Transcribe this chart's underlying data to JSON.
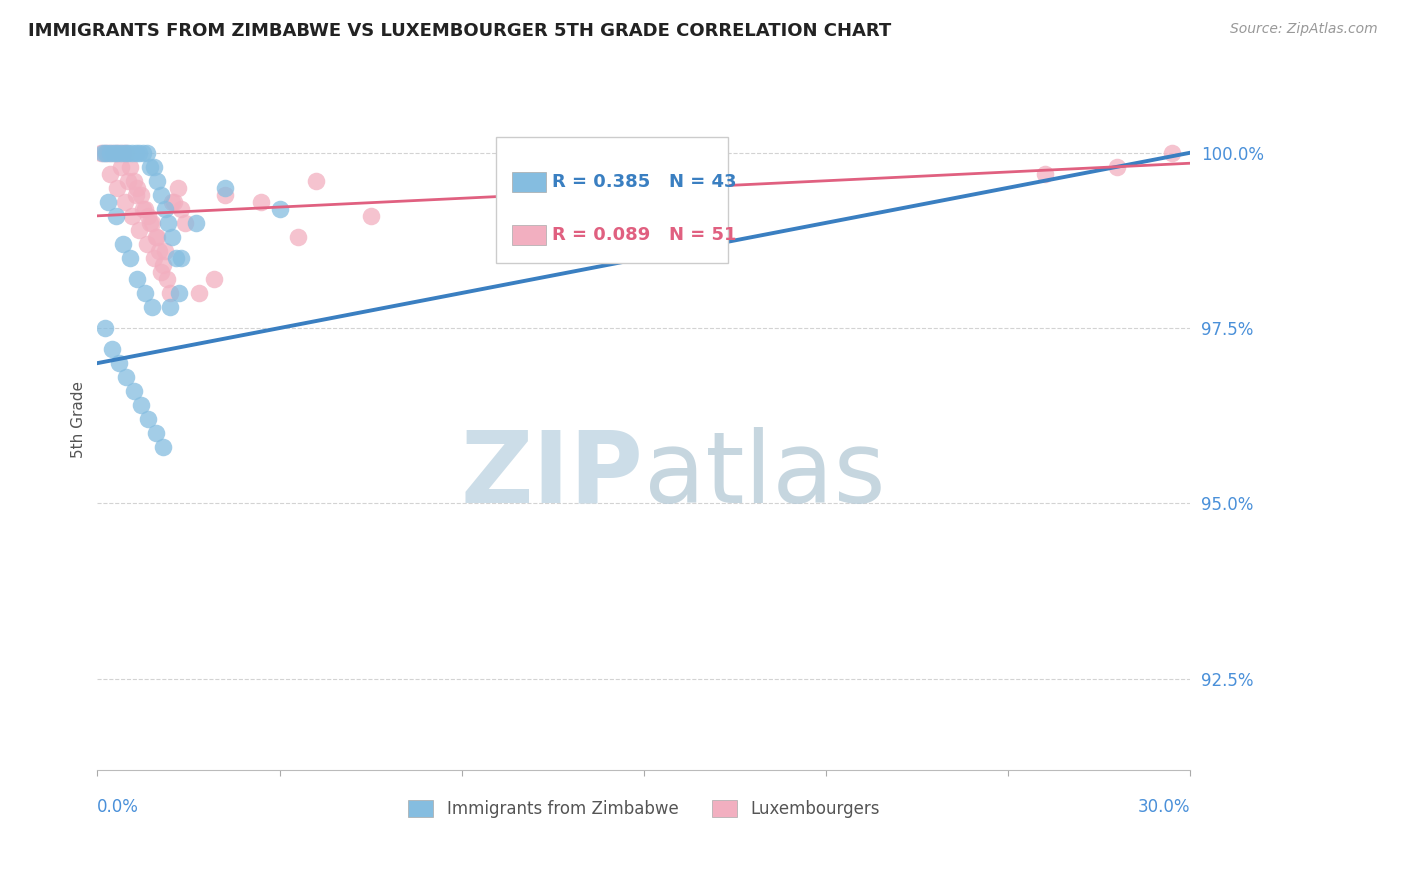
{
  "title": "IMMIGRANTS FROM ZIMBABWE VS LUXEMBOURGER 5TH GRADE CORRELATION CHART",
  "source": "Source: ZipAtlas.com",
  "ylabel": "5th Grade",
  "yticks": [
    92.5,
    95.0,
    97.5,
    100.0
  ],
  "ytick_labels": [
    "92.5%",
    "95.0%",
    "97.5%",
    "100.0%"
  ],
  "xlim": [
    0.0,
    30.0
  ],
  "ylim": [
    91.2,
    101.2
  ],
  "blue_color": "#85bde0",
  "pink_color": "#f2afc0",
  "blue_line_color": "#3a7fc1",
  "pink_line_color": "#e06080",
  "legend_r_blue": "R = 0.385",
  "legend_n_blue": "N = 43",
  "legend_r_pink": "R = 0.089",
  "legend_n_pink": "N = 51",
  "blue_scatter_x": [
    0.15,
    0.25,
    0.35,
    0.45,
    0.55,
    0.65,
    0.75,
    0.85,
    0.95,
    1.05,
    1.15,
    1.25,
    1.35,
    1.45,
    1.55,
    1.65,
    1.75,
    1.85,
    1.95,
    2.05,
    2.15,
    2.25,
    0.3,
    0.5,
    0.7,
    0.9,
    1.1,
    1.3,
    1.5,
    0.2,
    0.4,
    3.5,
    5.0,
    0.6,
    0.8,
    1.0,
    1.2,
    1.4,
    1.6,
    1.8,
    2.0,
    2.3,
    2.7
  ],
  "blue_scatter_y": [
    100.0,
    100.0,
    100.0,
    100.0,
    100.0,
    100.0,
    100.0,
    100.0,
    100.0,
    100.0,
    100.0,
    100.0,
    100.0,
    99.8,
    99.8,
    99.6,
    99.4,
    99.2,
    99.0,
    98.8,
    98.5,
    98.0,
    99.3,
    99.1,
    98.7,
    98.5,
    98.2,
    98.0,
    97.8,
    97.5,
    97.2,
    99.5,
    99.2,
    97.0,
    96.8,
    96.6,
    96.4,
    96.2,
    96.0,
    95.8,
    97.8,
    98.5,
    99.0
  ],
  "pink_scatter_x": [
    0.1,
    0.2,
    0.3,
    0.4,
    0.5,
    0.6,
    0.7,
    0.8,
    0.9,
    1.0,
    1.1,
    1.2,
    1.3,
    1.4,
    1.5,
    1.6,
    1.7,
    1.8,
    1.9,
    2.0,
    2.1,
    2.2,
    2.3,
    2.4,
    0.35,
    0.55,
    0.75,
    0.95,
    1.15,
    1.35,
    1.55,
    1.75,
    3.5,
    4.5,
    5.5,
    6.0,
    2.8,
    3.2,
    7.5,
    0.65,
    0.85,
    1.05,
    1.25,
    1.45,
    1.65,
    1.85,
    2.05,
    12.0,
    26.0,
    28.0,
    29.5
  ],
  "pink_scatter_y": [
    100.0,
    100.0,
    100.0,
    100.0,
    100.0,
    100.0,
    100.0,
    100.0,
    99.8,
    99.6,
    99.5,
    99.4,
    99.2,
    99.1,
    99.0,
    98.8,
    98.6,
    98.4,
    98.2,
    98.0,
    99.3,
    99.5,
    99.2,
    99.0,
    99.7,
    99.5,
    99.3,
    99.1,
    98.9,
    98.7,
    98.5,
    98.3,
    99.4,
    99.3,
    98.8,
    99.6,
    98.0,
    98.2,
    99.1,
    99.8,
    99.6,
    99.4,
    99.2,
    99.0,
    98.8,
    98.6,
    99.3,
    99.5,
    99.7,
    99.8,
    100.0
  ],
  "blue_line_x0": 0.0,
  "blue_line_y0": 97.0,
  "blue_line_x1": 30.0,
  "blue_line_y1": 100.0,
  "pink_line_x0": 0.0,
  "pink_line_y0": 99.1,
  "pink_line_x1": 30.0,
  "pink_line_y1": 99.85
}
